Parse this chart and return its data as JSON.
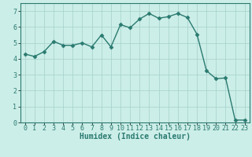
{
  "x": [
    0,
    1,
    2,
    3,
    4,
    5,
    6,
    7,
    8,
    9,
    10,
    11,
    12,
    13,
    14,
    15,
    16,
    17,
    18,
    19,
    20,
    21,
    22,
    23
  ],
  "y": [
    4.3,
    4.15,
    4.45,
    5.1,
    4.85,
    4.85,
    5.0,
    4.75,
    5.5,
    4.75,
    6.15,
    5.95,
    6.5,
    6.85,
    6.55,
    6.65,
    6.85,
    6.6,
    5.55,
    3.25,
    2.75,
    2.8,
    0.15,
    0.15
  ],
  "line_color": "#2a7a70",
  "marker": "D",
  "marker_size": 2.5,
  "bg_color": "#cceee8",
  "grid_color": "#aad4ce",
  "xlabel": "Humidex (Indice chaleur)",
  "xlim": [
    -0.5,
    23.5
  ],
  "ylim": [
    0,
    7.5
  ],
  "yticks": [
    0,
    1,
    2,
    3,
    4,
    5,
    6,
    7
  ],
  "xticks": [
    0,
    1,
    2,
    3,
    4,
    5,
    6,
    7,
    8,
    9,
    10,
    11,
    12,
    13,
    14,
    15,
    16,
    17,
    18,
    19,
    20,
    21,
    22,
    23
  ],
  "xlabel_fontsize": 7,
  "tick_fontsize": 6,
  "line_width": 1.0
}
